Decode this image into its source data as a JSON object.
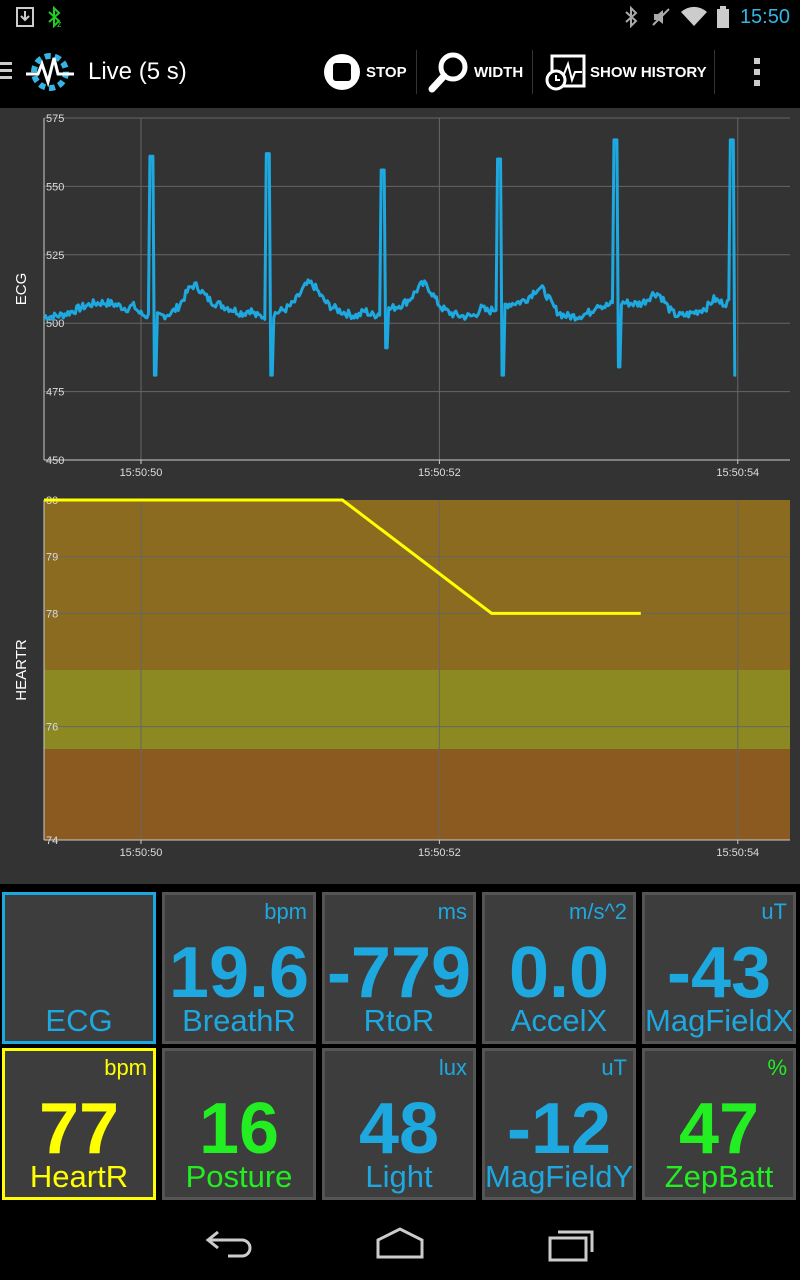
{
  "status_bar": {
    "time": "15:50",
    "icons": [
      "download-icon",
      "bluetooth-zephyr-icon",
      "bluetooth-icon",
      "mute-icon",
      "wifi-icon",
      "battery-icon"
    ]
  },
  "action_bar": {
    "title": "Live (5 s)",
    "stop_label": "STOP",
    "width_label": "WIDTH",
    "history_label": "SHOW HISTORY"
  },
  "chart_data": [
    {
      "type": "line",
      "ylabel": "ECG",
      "ylim": [
        450,
        575
      ],
      "yticks": [
        "575",
        "550",
        "525",
        "500",
        "475",
        "450"
      ],
      "xticks": [
        "15:50:50",
        "15:50:52",
        "15:50:54"
      ],
      "grid": true,
      "series_color": "#1ea8e0",
      "beats": [
        {
          "t": 50.07,
          "peak": 561,
          "trough": 481
        },
        {
          "t": 50.85,
          "peak": 562,
          "trough": 481
        },
        {
          "t": 51.62,
          "peak": 556,
          "trough": 491
        },
        {
          "t": 52.4,
          "peak": 560,
          "trough": 481
        },
        {
          "t": 53.18,
          "peak": 567,
          "trough": 484
        },
        {
          "t": 53.96,
          "peak": 567,
          "trough": 481
        }
      ]
    },
    {
      "type": "line",
      "ylabel": "HEARTR",
      "ylim": [
        74,
        80
      ],
      "yticks": [
        "80",
        "79",
        "78",
        "76",
        "74"
      ],
      "xticks": [
        "15:50:50",
        "15:50:52",
        "15:50:54"
      ],
      "grid": true,
      "series_color": "#ffff00",
      "x": [
        49.35,
        51.35,
        52.35,
        53.35
      ],
      "y": [
        80,
        80,
        78,
        78
      ],
      "bands": [
        {
          "from": 77,
          "to": 80,
          "color": "#8b6b1f"
        },
        {
          "from": 75.6,
          "to": 77,
          "color": "#8c8822"
        },
        {
          "from": 74,
          "to": 75.6,
          "color": "#8a5a20"
        }
      ]
    }
  ],
  "tiles": [
    {
      "id": "ecg",
      "value": "",
      "unit": "",
      "name": "ECG",
      "color": "#1ea8e0",
      "border": "#1ea8e0"
    },
    {
      "id": "breathr",
      "value": "19.6",
      "unit": "bpm",
      "name": "BreathR",
      "color": "#1ea8e0",
      "border": "#555"
    },
    {
      "id": "rtor",
      "value": "-779",
      "unit": "ms",
      "name": "RtoR",
      "color": "#1ea8e0",
      "border": "#555"
    },
    {
      "id": "accelx",
      "value": "0.0",
      "unit": "m/s^2",
      "name": "AccelX",
      "color": "#1ea8e0",
      "border": "#555"
    },
    {
      "id": "magfieldx",
      "value": "-43",
      "unit": "uT",
      "name": "MagFieldX",
      "color": "#1ea8e0",
      "border": "#555"
    },
    {
      "id": "heartr",
      "value": "77",
      "unit": "bpm",
      "name": "HeartR",
      "color": "#ffff00",
      "border": "#ffff00"
    },
    {
      "id": "posture",
      "value": "16",
      "unit": "",
      "name": "Posture",
      "color": "#22ee22",
      "border": "#555"
    },
    {
      "id": "light",
      "value": "48",
      "unit": "lux",
      "name": "Light",
      "color": "#1ea8e0",
      "border": "#555"
    },
    {
      "id": "magfieldy",
      "value": "-12",
      "unit": "uT",
      "name": "MagFieldY",
      "color": "#1ea8e0",
      "border": "#555"
    },
    {
      "id": "zepbatt",
      "value": "47",
      "unit": "%",
      "name": "ZepBatt",
      "color": "#22ee22",
      "border": "#555"
    }
  ],
  "nav_bar": {
    "buttons": [
      "back-icon",
      "home-icon",
      "recents-icon"
    ]
  }
}
